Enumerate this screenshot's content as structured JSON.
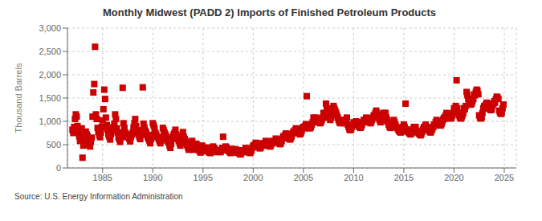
{
  "chart_data": {
    "type": "scatter",
    "title": "Monthly Midwest (PADD 2) Imports of Finished Petroleum Products",
    "y_label": "Thousand Barrels",
    "annotation": "Source: U.S. Energy Information Administration",
    "color": "#cc0000",
    "marker": "square",
    "grid": true,
    "xlim": [
      1981.5,
      2026.2
    ],
    "ylim": [
      0,
      3000
    ],
    "yticks": [
      0,
      500,
      {
        "value": 1000,
        "label": "1,000"
      },
      {
        "value": 1500,
        "label": "1,500"
      },
      {
        "value": 2000,
        "label": "2,000"
      },
      {
        "value": 2500,
        "label": "2,500"
      },
      {
        "value": 3000,
        "label": "3,000"
      }
    ],
    "xticks": [
      1985,
      1990,
      1995,
      2000,
      2005,
      2010,
      2015,
      2020,
      2025
    ],
    "x": [
      1982.0,
      1982.08,
      1982.17,
      1982.25,
      1982.33,
      1982.42,
      1982.5,
      1982.58,
      1982.67,
      1982.75,
      1982.83,
      1982.92,
      1983.0,
      1983.08,
      1983.17,
      1983.25,
      1983.33,
      1983.42,
      1983.5,
      1983.58,
      1983.67,
      1983.75,
      1983.83,
      1983.92,
      1984.0,
      1984.08,
      1984.17,
      1984.25,
      1984.33,
      1984.42,
      1984.5,
      1984.58,
      1984.67,
      1984.75,
      1984.83,
      1984.92,
      1985.0,
      1985.08,
      1985.17,
      1985.25,
      1985.33,
      1985.42,
      1985.5,
      1985.58,
      1985.67,
      1985.75,
      1985.83,
      1985.92,
      1986.0,
      1986.08,
      1986.17,
      1986.25,
      1986.33,
      1986.42,
      1986.5,
      1986.58,
      1986.67,
      1986.75,
      1986.83,
      1986.92,
      1987.0,
      1987.08,
      1987.17,
      1987.25,
      1987.33,
      1987.42,
      1987.5,
      1987.58,
      1987.67,
      1987.75,
      1987.83,
      1987.92,
      1988.0,
      1988.08,
      1988.17,
      1988.25,
      1988.33,
      1988.42,
      1988.5,
      1988.58,
      1988.67,
      1988.75,
      1988.83,
      1988.92,
      1989.0,
      1989.08,
      1989.17,
      1989.25,
      1989.33,
      1989.42,
      1989.5,
      1989.58,
      1989.67,
      1989.75,
      1989.83,
      1989.92,
      1990.0,
      1990.08,
      1990.17,
      1990.25,
      1990.33,
      1990.42,
      1990.5,
      1990.58,
      1990.67,
      1990.75,
      1990.83,
      1990.92,
      1991.0,
      1991.08,
      1991.17,
      1991.25,
      1991.33,
      1991.42,
      1991.5,
      1991.58,
      1991.67,
      1991.75,
      1991.83,
      1991.92,
      1992.0,
      1992.08,
      1992.17,
      1992.25,
      1992.33,
      1992.42,
      1992.5,
      1992.58,
      1992.67,
      1992.75,
      1992.83,
      1992.92,
      1993.0,
      1993.08,
      1993.17,
      1993.25,
      1993.33,
      1993.42,
      1993.5,
      1993.58,
      1993.67,
      1993.75,
      1993.83,
      1993.92,
      1994.0,
      1994.08,
      1994.17,
      1994.25,
      1994.33,
      1994.42,
      1994.5,
      1994.58,
      1994.67,
      1994.75,
      1994.83,
      1994.92,
      1995.0,
      1995.08,
      1995.17,
      1995.25,
      1995.33,
      1995.42,
      1995.5,
      1995.58,
      1995.67,
      1995.75,
      1995.83,
      1995.92,
      1996.0,
      1996.08,
      1996.17,
      1996.25,
      1996.33,
      1996.42,
      1996.5,
      1996.58,
      1996.67,
      1996.75,
      1996.83,
      1996.92,
      1997.0,
      1997.08,
      1997.17,
      1997.25,
      1997.33,
      1997.42,
      1997.5,
      1997.58,
      1997.67,
      1997.75,
      1997.83,
      1997.92,
      1998.0,
      1998.08,
      1998.17,
      1998.25,
      1998.33,
      1998.42,
      1998.5,
      1998.58,
      1998.67,
      1998.75,
      1998.83,
      1998.92,
      1999.0,
      1999.08,
      1999.17,
      1999.25,
      1999.33,
      1999.42,
      1999.5,
      1999.58,
      1999.67,
      1999.75,
      1999.83,
      1999.92,
      2000.0,
      2000.08,
      2000.17,
      2000.25,
      2000.33,
      2000.42,
      2000.5,
      2000.58,
      2000.67,
      2000.75,
      2000.83,
      2000.92,
      2001.0,
      2001.08,
      2001.17,
      2001.25,
      2001.33,
      2001.42,
      2001.5,
      2001.58,
      2001.67,
      2001.75,
      2001.83,
      2001.92,
      2002.0,
      2002.08,
      2002.17,
      2002.25,
      2002.33,
      2002.42,
      2002.5,
      2002.58,
      2002.67,
      2002.75,
      2002.83,
      2002.92,
      2003.0,
      2003.08,
      2003.17,
      2003.25,
      2003.33,
      2003.42,
      2003.5,
      2003.58,
      2003.67,
      2003.75,
      2003.83,
      2003.92,
      2004.0,
      2004.08,
      2004.17,
      2004.25,
      2004.33,
      2004.42,
      2004.5,
      2004.58,
      2004.67,
      2004.75,
      2004.83,
      2004.92,
      2005.0,
      2005.08,
      2005.17,
      2005.25,
      2005.33,
      2005.42,
      2005.5,
      2005.58,
      2005.67,
      2005.75,
      2005.83,
      2005.92,
      2006.0,
      2006.08,
      2006.17,
      2006.25,
      2006.33,
      2006.42,
      2006.5,
      2006.58,
      2006.67,
      2006.75,
      2006.83,
      2006.92,
      2007.0,
      2007.08,
      2007.17,
      2007.25,
      2007.33,
      2007.42,
      2007.5,
      2007.58,
      2007.67,
      2007.75,
      2007.83,
      2007.92,
      2008.0,
      2008.08,
      2008.17,
      2008.25,
      2008.33,
      2008.42,
      2008.5,
      2008.58,
      2008.67,
      2008.75,
      2008.83,
      2008.92,
      2009.0,
      2009.08,
      2009.17,
      2009.25,
      2009.33,
      2009.42,
      2009.5,
      2009.58,
      2009.67,
      2009.75,
      2009.83,
      2009.92,
      2010.0,
      2010.08,
      2010.17,
      2010.25,
      2010.33,
      2010.42,
      2010.5,
      2010.58,
      2010.67,
      2010.75,
      2010.83,
      2010.92,
      2011.0,
      2011.08,
      2011.17,
      2011.25,
      2011.33,
      2011.42,
      2011.5,
      2011.58,
      2011.67,
      2011.75,
      2011.83,
      2011.92,
      2012.0,
      2012.08,
      2012.17,
      2012.25,
      2012.33,
      2012.42,
      2012.5,
      2012.58,
      2012.67,
      2012.75,
      2012.83,
      2012.92,
      2013.0,
      2013.08,
      2013.17,
      2013.25,
      2013.33,
      2013.42,
      2013.5,
      2013.58,
      2013.67,
      2013.75,
      2013.83,
      2013.92,
      2014.0,
      2014.08,
      2014.17,
      2014.25,
      2014.33,
      2014.42,
      2014.5,
      2014.58,
      2014.67,
      2014.75,
      2014.83,
      2014.92,
      2015.0,
      2015.08,
      2015.17,
      2015.25,
      2015.33,
      2015.42,
      2015.5,
      2015.58,
      2015.67,
      2015.75,
      2015.83,
      2015.92,
      2016.0,
      2016.08,
      2016.17,
      2016.25,
      2016.33,
      2016.42,
      2016.5,
      2016.58,
      2016.67,
      2016.75,
      2016.83,
      2016.92,
      2017.0,
      2017.08,
      2017.17,
      2017.25,
      2017.33,
      2017.42,
      2017.5,
      2017.58,
      2017.67,
      2017.75,
      2017.83,
      2017.92,
      2018.0,
      2018.08,
      2018.17,
      2018.25,
      2018.33,
      2018.42,
      2018.5,
      2018.58,
      2018.67,
      2018.75,
      2018.83,
      2018.92,
      2019.0,
      2019.08,
      2019.17,
      2019.25,
      2019.33,
      2019.42,
      2019.5,
      2019.58,
      2019.67,
      2019.75,
      2019.83,
      2019.92,
      2020.0,
      2020.08,
      2020.17,
      2020.25,
      2020.33,
      2020.42,
      2020.5,
      2020.58,
      2020.67,
      2020.75,
      2020.83,
      2020.92,
      2021.0,
      2021.08,
      2021.17,
      2021.25,
      2021.33,
      2021.42,
      2021.5,
      2021.58,
      2021.67,
      2021.75,
      2021.83,
      2021.92,
      2022.0,
      2022.08,
      2022.17,
      2022.25,
      2022.33,
      2022.42,
      2022.5,
      2022.58,
      2022.67,
      2022.75,
      2022.83,
      2022.92,
      2023.0,
      2023.08,
      2023.17,
      2023.25,
      2023.33,
      2023.42,
      2023.5,
      2023.58,
      2023.67,
      2023.75,
      2023.83,
      2023.92,
      2024.0,
      2024.08,
      2024.17,
      2024.25,
      2024.33,
      2024.42,
      2024.5,
      2024.58,
      2024.67,
      2024.75,
      2024.83,
      2024.92
    ],
    "values": [
      820,
      750,
      880,
      1050,
      1150,
      1100,
      900,
      800,
      680,
      580,
      720,
      850,
      220,
      480,
      580,
      700,
      780,
      720,
      680,
      570,
      510,
      460,
      560,
      650,
      1100,
      1620,
      1800,
      2600,
      1150,
      1050,
      860,
      770,
      700,
      660,
      760,
      880,
      1020,
      1260,
      1680,
      1480,
      1080,
      920,
      830,
      720,
      670,
      610,
      720,
      860,
      870,
      800,
      950,
      1150,
      1050,
      850,
      760,
      660,
      610,
      560,
      660,
      760,
      1720,
      960,
      860,
      760,
      710,
      660,
      720,
      660,
      620,
      570,
      660,
      720,
      760,
      870,
      960,
      1050,
      900,
      800,
      760,
      710,
      660,
      620,
      710,
      810,
      1730,
      950,
      860,
      800,
      760,
      710,
      660,
      620,
      580,
      530,
      620,
      710,
      960,
      910,
      850,
      760,
      720,
      670,
      660,
      620,
      580,
      530,
      580,
      660,
      860,
      810,
      760,
      720,
      670,
      620,
      580,
      540,
      480,
      430,
      520,
      630,
      670,
      720,
      760,
      820,
      720,
      660,
      620,
      580,
      530,
      480,
      580,
      680,
      770,
      670,
      620,
      580,
      530,
      490,
      440,
      390,
      420,
      470,
      530,
      580,
      430,
      390,
      430,
      480,
      520,
      490,
      430,
      390,
      360,
      330,
      400,
      480,
      380,
      360,
      400,
      440,
      430,
      380,
      360,
      340,
      330,
      320,
      380,
      440,
      460,
      430,
      410,
      380,
      360,
      340,
      360,
      380,
      360,
      340,
      380,
      430,
      670,
      380,
      430,
      460,
      440,
      410,
      380,
      360,
      340,
      320,
      360,
      410,
      360,
      330,
      360,
      400,
      380,
      360,
      340,
      320,
      300,
      290,
      330,
      380,
      360,
      340,
      380,
      430,
      410,
      380,
      360,
      340,
      320,
      340,
      380,
      440,
      480,
      460,
      500,
      540,
      520,
      480,
      460,
      440,
      420,
      440,
      480,
      530,
      500,
      480,
      530,
      580,
      560,
      530,
      500,
      480,
      460,
      480,
      520,
      580,
      560,
      540,
      580,
      630,
      610,
      580,
      550,
      530,
      510,
      530,
      580,
      630,
      680,
      660,
      700,
      740,
      720,
      680,
      650,
      630,
      610,
      640,
      680,
      740,
      780,
      760,
      810,
      850,
      830,
      800,
      770,
      740,
      720,
      750,
      800,
      860,
      880,
      850,
      900,
      940,
      1540,
      920,
      890,
      870,
      850,
      880,
      930,
      980,
      1080,
      980,
      1030,
      1080,
      1060,
      1030,
      1000,
      980,
      960,
      980,
      1030,
      1080,
      1180,
      1080,
      1130,
      1380,
      1280,
      1180,
      1130,
      1080,
      1030,
      1080,
      1180,
      1280,
      1330,
      1280,
      1230,
      1180,
      1130,
      1080,
      1030,
      980,
      960,
      980,
      1030,
      1030,
      980,
      960,
      980,
      1030,
      1080,
      930,
      880,
      830,
      810,
      830,
      880,
      930,
      980,
      930,
      960,
      1000,
      980,
      930,
      900,
      880,
      860,
      880,
      930,
      980,
      1030,
      980,
      1030,
      1080,
      1060,
      1030,
      1000,
      980,
      960,
      980,
      1030,
      1080,
      1130,
      1080,
      1180,
      1230,
      1180,
      1130,
      1080,
      1030,
      980,
      1000,
      1080,
      1130,
      1180,
      1130,
      1180,
      1080,
      1030,
      980,
      930,
      880,
      860,
      880,
      930,
      980,
      1030,
      980,
      930,
      880,
      860,
      830,
      800,
      780,
      760,
      780,
      830,
      880,
      930,
      880,
      1380,
      830,
      800,
      780,
      760,
      740,
      720,
      740,
      780,
      830,
      880,
      860,
      880,
      800,
      780,
      760,
      740,
      720,
      700,
      730,
      780,
      830,
      880,
      860,
      930,
      880,
      860,
      830,
      800,
      780,
      760,
      790,
      840,
      880,
      930,
      910,
      980,
      1030,
      1000,
      980,
      950,
      930,
      910,
      940,
      990,
      1040,
      1080,
      1060,
      1130,
      1180,
      1160,
      1130,
      1100,
      1080,
      1060,
      1080,
      1130,
      1180,
      1280,
      1260,
      1330,
      1880,
      1280,
      1180,
      1130,
      1080,
      1060,
      1080,
      1130,
      1180,
      1280,
      1260,
      1330,
      1630,
      1560,
      1480,
      1430,
      1380,
      1360,
      1380,
      1430,
      1480,
      1580,
      1560,
      1630,
      1680,
      1660,
      1580,
      1130,
      1080,
      1060,
      1080,
      1180,
      1280,
      1330,
      1280,
      1360,
      1400,
      1380,
      1330,
      1280,
      1260,
      1240,
      1260,
      1330,
      1380,
      1430,
      1400,
      1480,
      1530,
      1510,
      1480,
      1230,
      1180,
      1160,
      1180,
      1280,
      1360
    ]
  }
}
